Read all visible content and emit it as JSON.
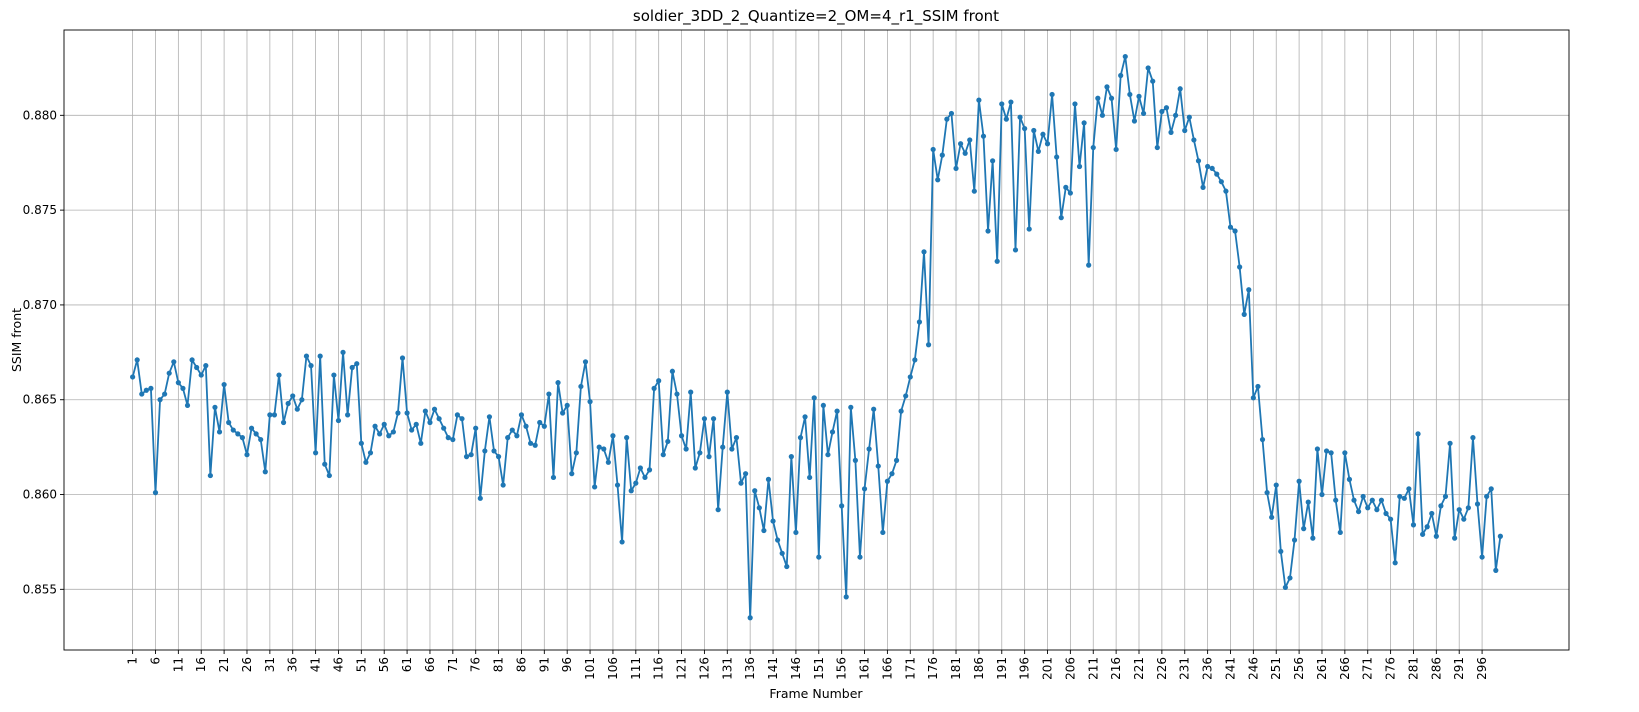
{
  "chart_data": {
    "type": "line",
    "title": "soldier_3DD_2_Quantize=2_OM=4_r1_SSIM front",
    "xlabel": "Frame Number",
    "ylabel": "SSIM front",
    "xlim": [
      -14,
      315
    ],
    "ylim": [
      0.8518,
      0.8845
    ],
    "grid": true,
    "line_color": "#1f77b4",
    "x_tick_labels": [
      "1",
      "6",
      "11",
      "16",
      "21",
      "26",
      "31",
      "36",
      "41",
      "46",
      "51",
      "56",
      "61",
      "66",
      "71",
      "76",
      "81",
      "86",
      "91",
      "96",
      "101",
      "106",
      "111",
      "116",
      "121",
      "126",
      "131",
      "136",
      "141",
      "146",
      "151",
      "156",
      "161",
      "166",
      "171",
      "176",
      "181",
      "186",
      "191",
      "196",
      "201",
      "206",
      "211",
      "216",
      "221",
      "226",
      "231",
      "236",
      "241",
      "246",
      "251",
      "256",
      "261",
      "266",
      "271",
      "276",
      "281",
      "286",
      "291",
      "296"
    ],
    "y_ticks": [
      0.855,
      0.86,
      0.865,
      0.87,
      0.875,
      0.88
    ],
    "y_tick_labels": [
      "0.855",
      "0.860",
      "0.865",
      "0.870",
      "0.875",
      "0.880"
    ],
    "series": [
      {
        "x_start": 1,
        "values": [
          0.8662,
          0.8671,
          0.8653,
          0.8655,
          0.8656,
          0.8601,
          0.865,
          0.8653,
          0.8664,
          0.867,
          0.8659,
          0.8656,
          0.8647,
          0.8671,
          0.8667,
          0.8663,
          0.8668,
          0.861,
          0.8646,
          0.8633,
          0.8658,
          0.8638,
          0.8634,
          0.8632,
          0.863,
          0.8621,
          0.8635,
          0.8632,
          0.8629,
          0.8612,
          0.8642,
          0.8642,
          0.8663,
          0.8638,
          0.8648,
          0.8652,
          0.8645,
          0.865,
          0.8673,
          0.8668,
          0.8622,
          0.8673,
          0.8616,
          0.861,
          0.8663,
          0.8639,
          0.8675,
          0.8642,
          0.8667,
          0.8669,
          0.8627,
          0.8617,
          0.8622,
          0.8636,
          0.8632,
          0.8637,
          0.8631,
          0.8633,
          0.8643,
          0.8672,
          0.8643,
          0.8634,
          0.8637,
          0.8627,
          0.8644,
          0.8638,
          0.8645,
          0.864,
          0.8635,
          0.863,
          0.8629,
          0.8642,
          0.864,
          0.862,
          0.8621,
          0.8635,
          0.8598,
          0.8623,
          0.8641,
          0.8623,
          0.862,
          0.8605,
          0.863,
          0.8634,
          0.8631,
          0.8642,
          0.8636,
          0.8627,
          0.8626,
          0.8638,
          0.8636,
          0.8653,
          0.8609,
          0.8659,
          0.8643,
          0.8647,
          0.8611,
          0.8622,
          0.8657,
          0.867,
          0.8649,
          0.8604,
          0.8625,
          0.8624,
          0.8617,
          0.8631,
          0.8605,
          0.8575,
          0.863,
          0.8602,
          0.8606,
          0.8614,
          0.8609,
          0.8613,
          0.8656,
          0.866,
          0.8621,
          0.8628,
          0.8665,
          0.8653,
          0.8631,
          0.8624,
          0.8654,
          0.8614,
          0.8622,
          0.864,
          0.862,
          0.864,
          0.8592,
          0.8625,
          0.8654,
          0.8624,
          0.863,
          0.8606,
          0.8611,
          0.8535,
          0.8602,
          0.8593,
          0.8581,
          0.8608,
          0.8586,
          0.8576,
          0.8569,
          0.8562,
          0.862,
          0.858,
          0.863,
          0.8641,
          0.8609,
          0.8651,
          0.8567,
          0.8647,
          0.8621,
          0.8633,
          0.8644,
          0.8594,
          0.8546,
          0.8646,
          0.8618,
          0.8567,
          0.8603,
          0.8624,
          0.8645,
          0.8615,
          0.858,
          0.8607,
          0.8611,
          0.8618,
          0.8644,
          0.8652,
          0.8662,
          0.8671,
          0.8691,
          0.8728,
          0.8679,
          0.8782,
          0.8766,
          0.8779,
          0.8798,
          0.8801,
          0.8772,
          0.8785,
          0.878,
          0.8787,
          0.876,
          0.8808,
          0.8789,
          0.8739,
          0.8776,
          0.8723,
          0.8806,
          0.8798,
          0.8807,
          0.8729,
          0.8799,
          0.8793,
          0.874,
          0.8792,
          0.8781,
          0.879,
          0.8785,
          0.8811,
          0.8778,
          0.8746,
          0.8762,
          0.8759,
          0.8806,
          0.8773,
          0.8796,
          0.8721,
          0.8783,
          0.8809,
          0.88,
          0.8815,
          0.8809,
          0.8782,
          0.8821,
          0.8831,
          0.8811,
          0.8797,
          0.881,
          0.8801,
          0.8825,
          0.8818,
          0.8783,
          0.8802,
          0.8804,
          0.8791,
          0.88,
          0.8814,
          0.8792,
          0.8799,
          0.8787,
          0.8776,
          0.8762,
          0.8773,
          0.8772,
          0.8769,
          0.8765,
          0.876,
          0.8741,
          0.8739,
          0.872,
          0.8695,
          0.8708,
          0.8651,
          0.8657,
          0.8629,
          0.8601,
          0.8588,
          0.8605,
          0.857,
          0.8551,
          0.8556,
          0.8576,
          0.8607,
          0.8582,
          0.8596,
          0.8577,
          0.8624,
          0.86,
          0.8623,
          0.8622,
          0.8597,
          0.858,
          0.8622,
          0.8608,
          0.8597,
          0.8591,
          0.8599,
          0.8593,
          0.8597,
          0.8592,
          0.8597,
          0.859,
          0.8587,
          0.8564,
          0.8599,
          0.8598,
          0.8603,
          0.8584,
          0.8632,
          0.8579,
          0.8583,
          0.859,
          0.8578,
          0.8594,
          0.8599,
          0.8627,
          0.8577,
          0.8592,
          0.8587,
          0.8593,
          0.863,
          0.8595,
          0.8567,
          0.8599,
          0.8603,
          0.856,
          0.8578
        ]
      }
    ]
  }
}
